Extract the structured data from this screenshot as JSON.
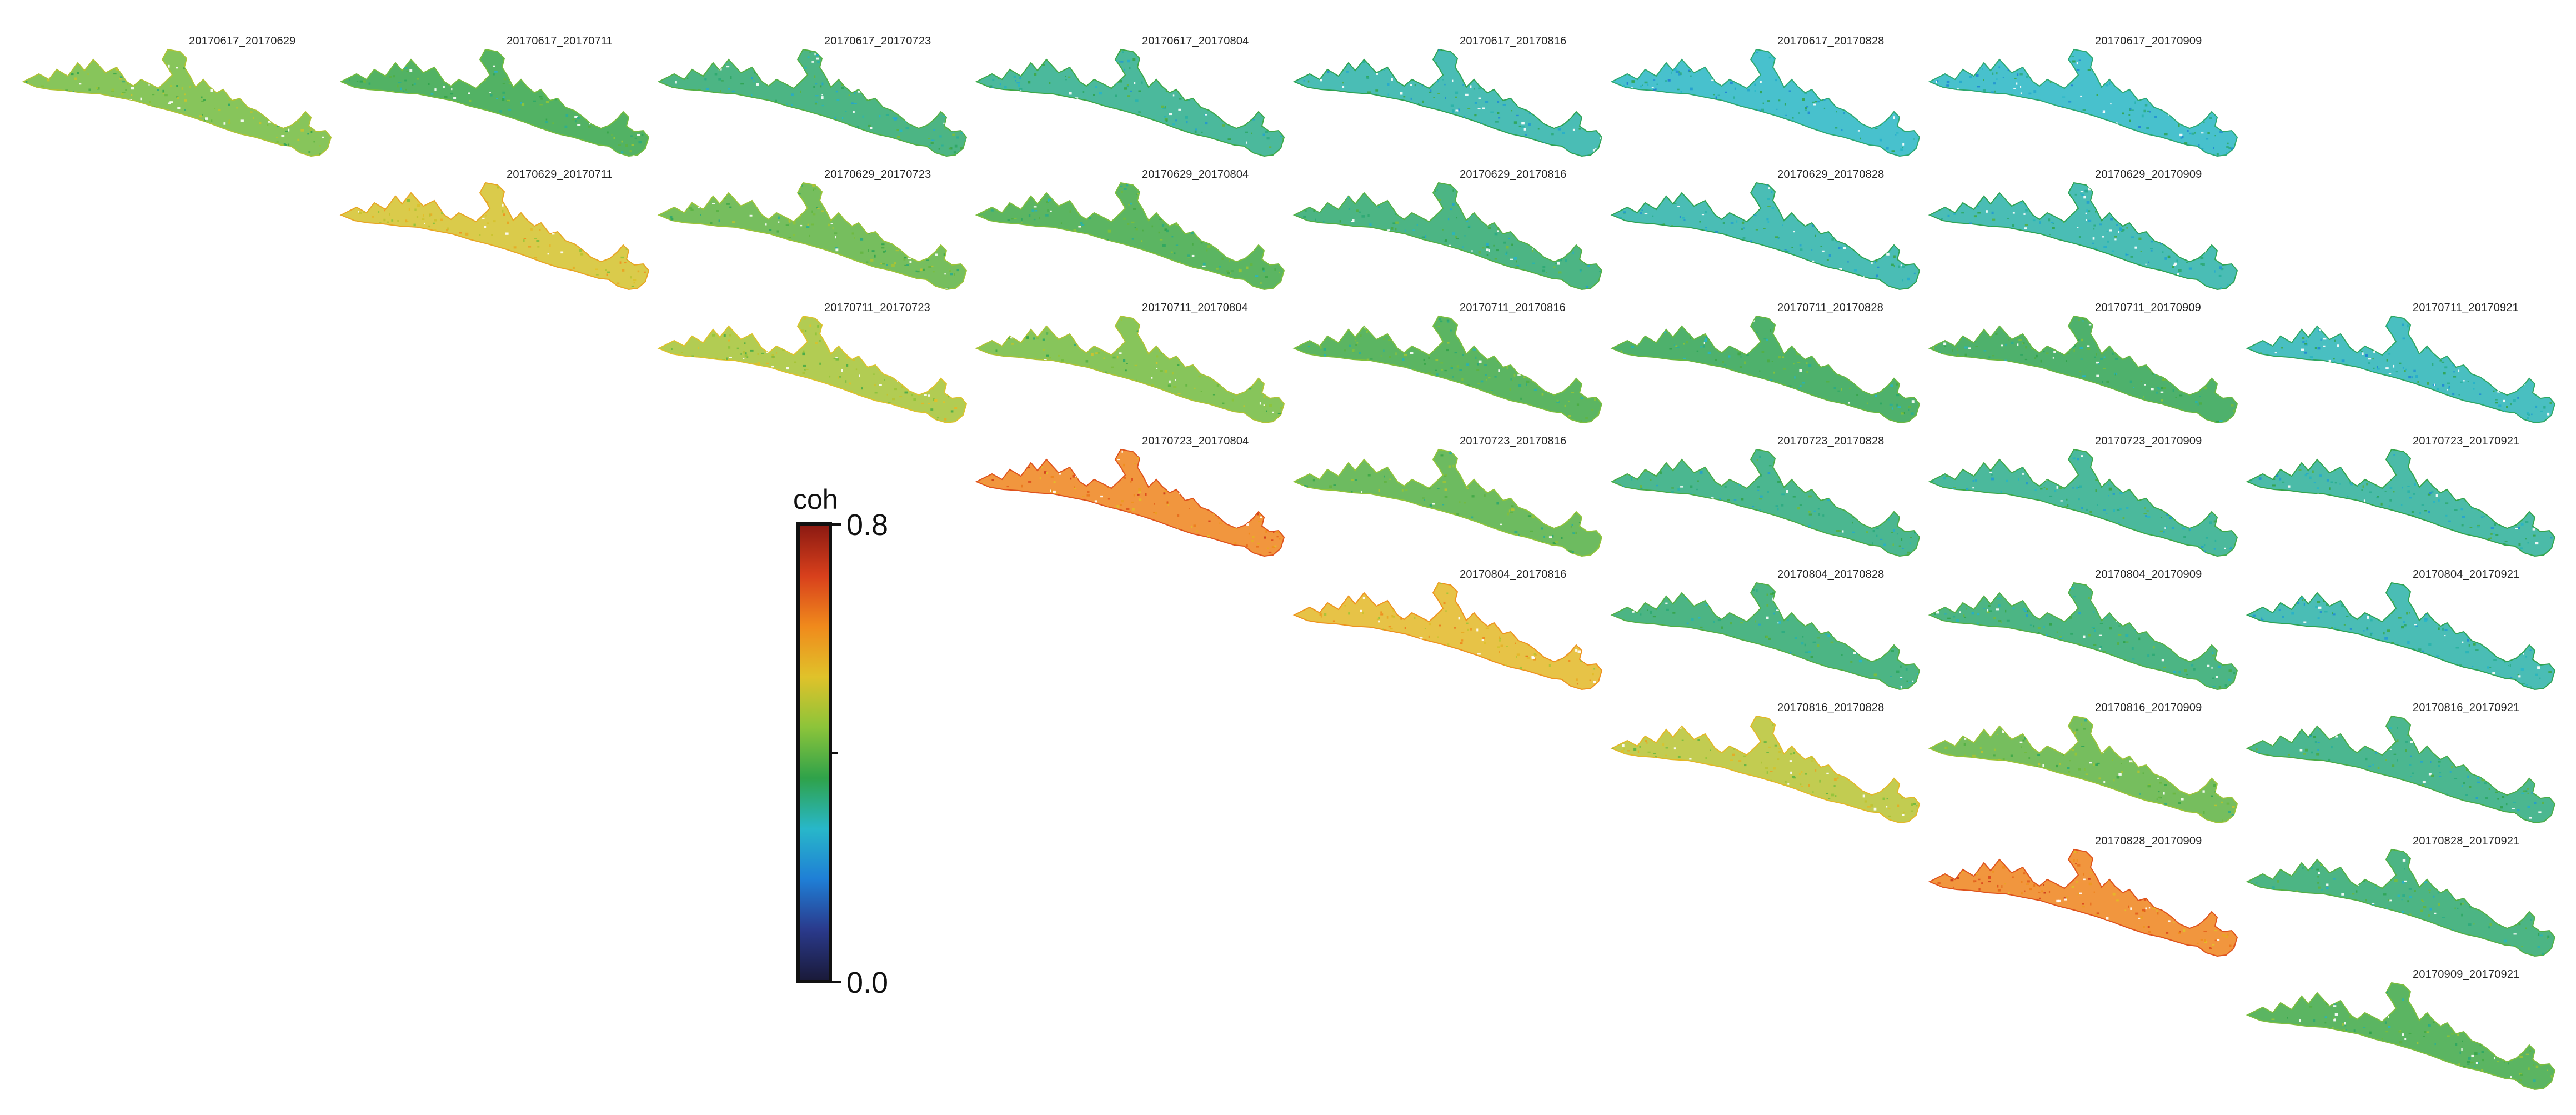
{
  "colorbar": {
    "title": "coh",
    "max_label": "0.8",
    "min_label": "0.0",
    "min_value": 0.0,
    "max_value": 0.8,
    "colormap": [
      "#1a1a3a",
      "#2a3a8c",
      "#1f7fd6",
      "#28b7c9",
      "#2fa24a",
      "#8cc43a",
      "#e0c22a",
      "#f08a1c",
      "#d8401c",
      "#8c1a12"
    ]
  },
  "panels": [
    {
      "label": "20170617_20170629",
      "row": 0,
      "col": 0,
      "coherence": 0.42
    },
    {
      "label": "20170617_20170711",
      "row": 0,
      "col": 1,
      "coherence": 0.36
    },
    {
      "label": "20170617_20170723",
      "row": 0,
      "col": 2,
      "coherence": 0.33
    },
    {
      "label": "20170617_20170804",
      "row": 0,
      "col": 3,
      "coherence": 0.31
    },
    {
      "label": "20170617_20170816",
      "row": 0,
      "col": 4,
      "coherence": 0.29
    },
    {
      "label": "20170617_20170828",
      "row": 0,
      "col": 5,
      "coherence": 0.27
    },
    {
      "label": "20170617_20170909",
      "row": 0,
      "col": 6,
      "coherence": 0.27
    },
    {
      "label": "20170629_20170711",
      "row": 1,
      "col": 1,
      "coherence": 0.52
    },
    {
      "label": "20170629_20170723",
      "row": 1,
      "col": 2,
      "coherence": 0.4
    },
    {
      "label": "20170629_20170804",
      "row": 1,
      "col": 3,
      "coherence": 0.37
    },
    {
      "label": "20170629_20170816",
      "row": 1,
      "col": 4,
      "coherence": 0.33
    },
    {
      "label": "20170629_20170828",
      "row": 1,
      "col": 5,
      "coherence": 0.29
    },
    {
      "label": "20170629_20170909",
      "row": 1,
      "col": 6,
      "coherence": 0.29
    },
    {
      "label": "20170711_20170723",
      "row": 2,
      "col": 2,
      "coherence": 0.47
    },
    {
      "label": "20170711_20170804",
      "row": 2,
      "col": 3,
      "coherence": 0.42
    },
    {
      "label": "20170711_20170816",
      "row": 2,
      "col": 4,
      "coherence": 0.37
    },
    {
      "label": "20170711_20170828",
      "row": 2,
      "col": 5,
      "coherence": 0.35
    },
    {
      "label": "20170711_20170909",
      "row": 2,
      "col": 6,
      "coherence": 0.35
    },
    {
      "label": "20170711_20170921",
      "row": 2,
      "col": 7,
      "coherence": 0.28
    },
    {
      "label": "20170723_20170804",
      "row": 3,
      "col": 3,
      "coherence": 0.63
    },
    {
      "label": "20170723_20170816",
      "row": 3,
      "col": 4,
      "coherence": 0.39
    },
    {
      "label": "20170723_20170828",
      "row": 3,
      "col": 5,
      "coherence": 0.32
    },
    {
      "label": "20170723_20170909",
      "row": 3,
      "col": 6,
      "coherence": 0.31
    },
    {
      "label": "20170723_20170921",
      "row": 3,
      "col": 7,
      "coherence": 0.3
    },
    {
      "label": "20170804_20170816",
      "row": 4,
      "col": 4,
      "coherence": 0.55
    },
    {
      "label": "20170804_20170828",
      "row": 4,
      "col": 5,
      "coherence": 0.33
    },
    {
      "label": "20170804_20170909",
      "row": 4,
      "col": 6,
      "coherence": 0.33
    },
    {
      "label": "20170804_20170921",
      "row": 4,
      "col": 7,
      "coherence": 0.29
    },
    {
      "label": "20170816_20170828",
      "row": 5,
      "col": 5,
      "coherence": 0.49
    },
    {
      "label": "20170816_20170909",
      "row": 5,
      "col": 6,
      "coherence": 0.4
    },
    {
      "label": "20170816_20170921",
      "row": 5,
      "col": 7,
      "coherence": 0.32
    },
    {
      "label": "20170828_20170909",
      "row": 6,
      "col": 6,
      "coherence": 0.63
    },
    {
      "label": "20170828_20170921",
      "row": 6,
      "col": 7,
      "coherence": 0.33
    },
    {
      "label": "20170909_20170921",
      "row": 7,
      "col": 7,
      "coherence": 0.37
    }
  ]
}
